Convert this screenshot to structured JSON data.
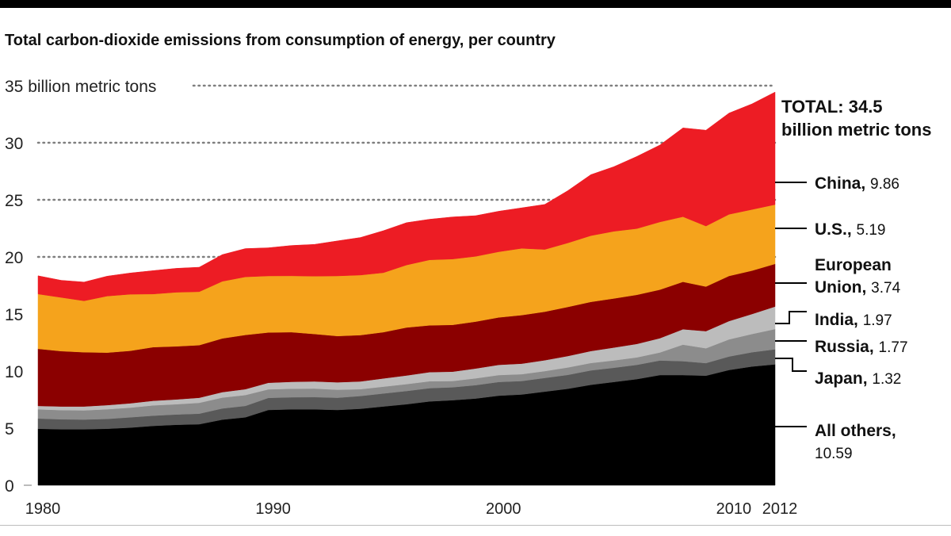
{
  "chart_data": {
    "type": "area",
    "title": "Total carbon-dioxide emissions from consumption of energy, per country",
    "y_unit_label": "billion metric tons",
    "ylim": [
      0,
      35
    ],
    "y_ticks": [
      0,
      5,
      10,
      15,
      20,
      25,
      30,
      35
    ],
    "xlim": [
      1980,
      2012
    ],
    "x_ticks": [
      1980,
      1990,
      2000,
      2010,
      2012
    ],
    "stacked": true,
    "grid": "dotted lines at 20, 25, 30, 35",
    "x": [
      1980,
      1981,
      1982,
      1983,
      1984,
      1985,
      1986,
      1987,
      1988,
      1989,
      1990,
      1991,
      1992,
      1993,
      1994,
      1995,
      1996,
      1997,
      1998,
      1999,
      2000,
      2001,
      2002,
      2003,
      2004,
      2005,
      2006,
      2007,
      2008,
      2009,
      2010,
      2011,
      2012
    ],
    "series": [
      {
        "name": "All others",
        "color": "#000000",
        "values": [
          4.95,
          4.9,
          4.9,
          4.95,
          5.05,
          5.2,
          5.3,
          5.35,
          5.75,
          5.95,
          6.6,
          6.65,
          6.65,
          6.6,
          6.7,
          6.9,
          7.1,
          7.35,
          7.45,
          7.6,
          7.85,
          7.95,
          8.2,
          8.45,
          8.8,
          9.05,
          9.3,
          9.65,
          9.65,
          9.6,
          10.1,
          10.4,
          10.59
        ]
      },
      {
        "name": "Japan",
        "color": "#595959",
        "values": [
          0.9,
          0.88,
          0.86,
          0.86,
          0.9,
          0.9,
          0.9,
          0.92,
          0.98,
          1.0,
          1.05,
          1.06,
          1.07,
          1.07,
          1.12,
          1.14,
          1.16,
          1.16,
          1.13,
          1.17,
          1.2,
          1.18,
          1.2,
          1.22,
          1.26,
          1.24,
          1.25,
          1.28,
          1.22,
          1.1,
          1.18,
          1.25,
          1.32
        ]
      },
      {
        "name": "Russia",
        "color": "#8c8c8c",
        "values": [
          0.8,
          0.8,
          0.8,
          0.85,
          0.85,
          0.9,
          0.9,
          0.95,
          0.95,
          0.95,
          0.75,
          0.75,
          0.75,
          0.7,
          0.6,
          0.6,
          0.6,
          0.6,
          0.55,
          0.6,
          0.6,
          0.6,
          0.6,
          0.65,
          0.65,
          0.65,
          0.65,
          0.7,
          1.45,
          1.3,
          1.5,
          1.6,
          1.77
        ]
      },
      {
        "name": "India",
        "color": "#bcbcbc",
        "values": [
          0.3,
          0.32,
          0.34,
          0.36,
          0.38,
          0.4,
          0.42,
          0.45,
          0.48,
          0.52,
          0.58,
          0.6,
          0.63,
          0.65,
          0.68,
          0.72,
          0.76,
          0.8,
          0.82,
          0.86,
          0.9,
          0.92,
          0.95,
          1.0,
          1.05,
          1.12,
          1.18,
          1.25,
          1.35,
          1.5,
          1.6,
          1.75,
          1.97
        ]
      },
      {
        "name": "European Union",
        "color": "#8b0000",
        "values": [
          5.0,
          4.85,
          4.75,
          4.6,
          4.6,
          4.7,
          4.65,
          4.6,
          4.7,
          4.75,
          4.4,
          4.35,
          4.15,
          4.05,
          4.05,
          4.05,
          4.2,
          4.1,
          4.1,
          4.1,
          4.15,
          4.25,
          4.25,
          4.3,
          4.3,
          4.3,
          4.3,
          4.25,
          4.15,
          3.9,
          3.95,
          3.8,
          3.74
        ]
      },
      {
        "name": "U.S.",
        "color": "#f5a31c",
        "values": [
          4.8,
          4.7,
          4.5,
          4.95,
          4.95,
          4.65,
          4.73,
          4.68,
          5.0,
          5.08,
          4.95,
          4.93,
          5.06,
          5.26,
          5.26,
          5.21,
          5.47,
          5.73,
          5.76,
          5.72,
          5.75,
          5.85,
          5.45,
          5.6,
          5.8,
          5.88,
          5.8,
          5.93,
          5.7,
          5.3,
          5.4,
          5.35,
          5.19
        ]
      },
      {
        "name": "China",
        "color": "#ed1c24",
        "values": [
          1.6,
          1.5,
          1.65,
          1.74,
          1.86,
          2.05,
          2.1,
          2.15,
          2.34,
          2.48,
          2.47,
          2.66,
          2.79,
          3.07,
          3.29,
          3.68,
          3.71,
          3.56,
          3.69,
          3.56,
          3.55,
          3.55,
          3.95,
          4.58,
          5.34,
          5.66,
          6.32,
          6.74,
          7.78,
          8.4,
          8.87,
          9.25,
          9.86
        ]
      }
    ],
    "right_labels": [
      {
        "key": "total",
        "bold": "TOTAL: 34.5",
        "bold2": "billion metric tons"
      },
      {
        "key": "china",
        "name": "China,",
        "value": "9.86"
      },
      {
        "key": "us",
        "name": "U.S.,",
        "value": "5.19"
      },
      {
        "key": "eu",
        "name": "European",
        "name2": "Union,",
        "value": "3.74"
      },
      {
        "key": "india",
        "name": "India,",
        "value": "1.97"
      },
      {
        "key": "russia",
        "name": "Russia,",
        "value": "1.77"
      },
      {
        "key": "japan",
        "name": "Japan,",
        "value": "1.32"
      },
      {
        "key": "others",
        "name": "All others,",
        "value": "10.59"
      }
    ]
  }
}
